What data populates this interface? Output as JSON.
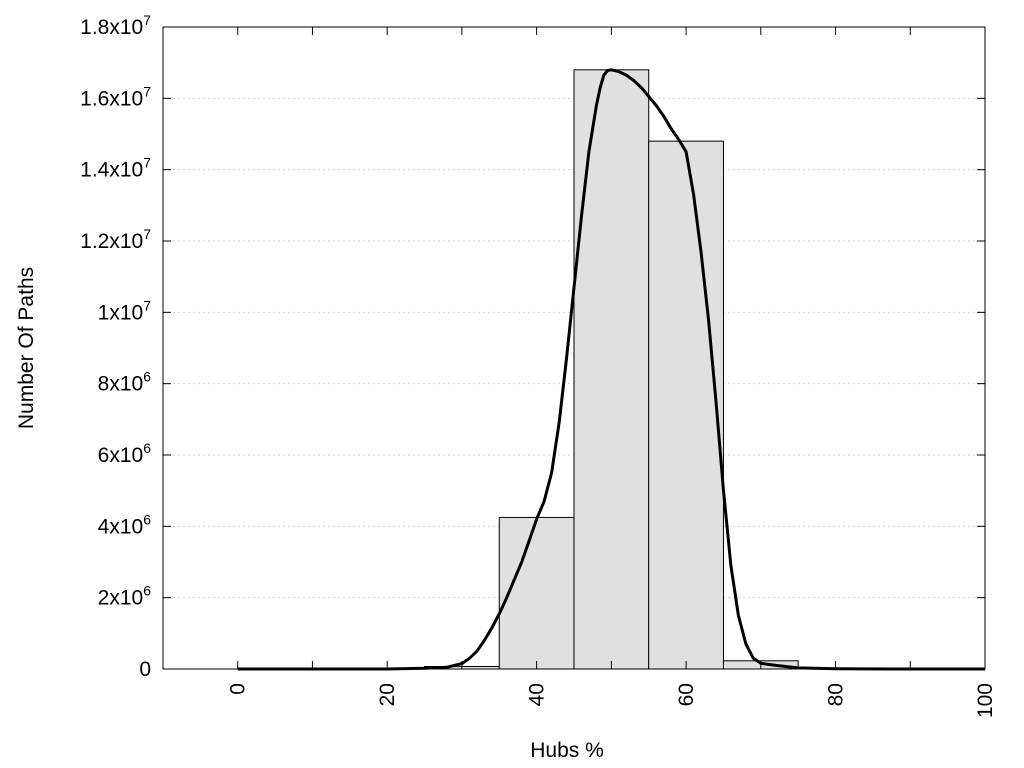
{
  "chart_data": {
    "type": "bar",
    "title": "",
    "xlabel": "Hubs %",
    "ylabel": "Number Of Paths",
    "xlim": [
      -10,
      100
    ],
    "ylim": [
      0,
      18000000
    ],
    "grid": "horizontal dotted",
    "legend": "none",
    "x_ticks": [
      {
        "value": 0,
        "label": "0"
      },
      {
        "value": 20,
        "label": "20"
      },
      {
        "value": 40,
        "label": "40"
      },
      {
        "value": 60,
        "label": "60"
      },
      {
        "value": 80,
        "label": "80"
      },
      {
        "value": 100,
        "label": "100"
      }
    ],
    "y_ticks": [
      {
        "value": 0,
        "base": "0",
        "exp": ""
      },
      {
        "value": 2000000,
        "base": "2x10",
        "exp": "6"
      },
      {
        "value": 4000000,
        "base": "4x10",
        "exp": "6"
      },
      {
        "value": 6000000,
        "base": "6x10",
        "exp": "6"
      },
      {
        "value": 8000000,
        "base": "8x10",
        "exp": "6"
      },
      {
        "value": 10000000,
        "base": "1x10",
        "exp": "7"
      },
      {
        "value": 12000000,
        "base": "1.2x10",
        "exp": "7"
      },
      {
        "value": 14000000,
        "base": "1.4x10",
        "exp": "7"
      },
      {
        "value": 16000000,
        "base": "1.6x10",
        "exp": "7"
      },
      {
        "value": 18000000,
        "base": "1.8x10",
        "exp": "7"
      }
    ],
    "bins": [
      {
        "start": -5,
        "end": 5,
        "value": 0
      },
      {
        "start": 5,
        "end": 15,
        "value": 0
      },
      {
        "start": 15,
        "end": 25,
        "value": 0
      },
      {
        "start": 25,
        "end": 35,
        "value": 70000
      },
      {
        "start": 35,
        "end": 45,
        "value": 4250000
      },
      {
        "start": 45,
        "end": 55,
        "value": 16800000
      },
      {
        "start": 55,
        "end": 65,
        "value": 14800000
      },
      {
        "start": 65,
        "end": 75,
        "value": 230000
      },
      {
        "start": 75,
        "end": 85,
        "value": 0
      },
      {
        "start": 85,
        "end": 95,
        "value": 0
      }
    ],
    "curve": {
      "type": "line",
      "x": [
        0,
        10,
        20,
        25,
        28,
        30,
        31,
        32,
        33,
        34,
        35,
        36,
        37,
        38,
        39,
        40,
        41,
        42,
        43,
        44,
        45,
        46,
        47,
        48,
        48.5,
        49,
        49.5,
        50,
        51,
        52,
        53,
        54,
        55,
        56,
        57,
        58,
        59,
        60,
        61,
        62,
        63,
        64,
        65,
        66,
        67,
        68,
        69,
        70,
        72,
        75,
        80,
        90,
        100
      ],
      "y": [
        0,
        0,
        0,
        20000,
        50000,
        150000,
        300000,
        500000,
        800000,
        1150000,
        1550000,
        2000000,
        2500000,
        3000000,
        3600000,
        4200000,
        4700000,
        5500000,
        6900000,
        8700000,
        10700000,
        12700000,
        14500000,
        15800000,
        16300000,
        16650000,
        16780000,
        16800000,
        16750000,
        16650000,
        16500000,
        16300000,
        16050000,
        15800000,
        15500000,
        15150000,
        14850000,
        14500000,
        13300000,
        11700000,
        9800000,
        7500000,
        5000000,
        2900000,
        1500000,
        700000,
        300000,
        160000,
        100000,
        30000,
        5000,
        0,
        0
      ]
    }
  }
}
